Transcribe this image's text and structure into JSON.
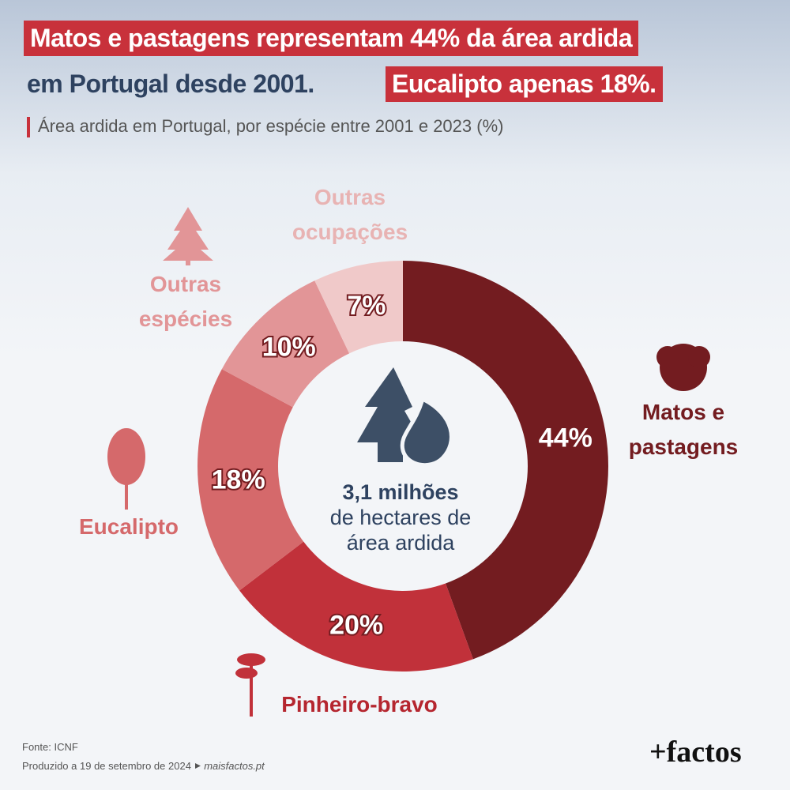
{
  "chart_data": {
    "type": "donut",
    "title_line1": "Matos e pastagens representam 44% da área ardida",
    "title_line2": "em Portugal desde 2001.",
    "title_highlight": "Eucalipto apenas 18%.",
    "subtitle": "Área ardida em Portugal, por espécie entre 2001 e 2023 (%)",
    "categories": [
      "Matos e pastagens",
      "Pinheiro-bravo",
      "Eucalipto",
      "Outras espécies",
      "Outras ocupações"
    ],
    "values": [
      44,
      20,
      18,
      10,
      7
    ],
    "value_labels": [
      "44%",
      "20%",
      "18%",
      "10%",
      "7%"
    ],
    "colors": [
      "#731c20",
      "#c1313a",
      "#d5696b",
      "#e29597",
      "#f0c9c9"
    ],
    "label_colors": [
      "#731c20",
      "#b5262f",
      "#d5696b",
      "#e29597",
      "#e8b3b3"
    ],
    "center_text": [
      "3,1 milhões",
      "de hectares de",
      "área ardida"
    ],
    "source": "Fonte: ICNF",
    "produced": "Produzido a 19 de setembro de 2024",
    "site": "maisfactos.pt",
    "logo": "+factos"
  }
}
